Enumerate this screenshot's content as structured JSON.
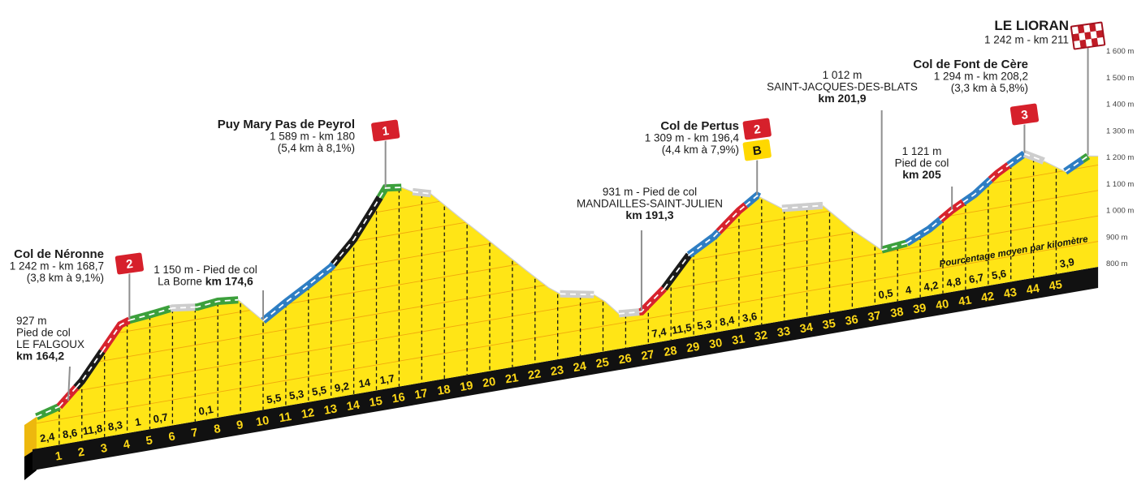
{
  "chart_data": {
    "type": "area",
    "x_unit": "km",
    "y_unit": "m",
    "gradient_axis_label": "Pourcentage moyen par kilomètre",
    "y_axis_labels": [
      "1 600 m",
      "1 500 m",
      "1 400 m",
      "1 300 m",
      "1 200 m",
      "1 100 m",
      "1 000 m",
      "900 m",
      "800 m"
    ],
    "y_axis_values": [
      1600,
      1500,
      1400,
      1300,
      1200,
      1100,
      1000,
      900,
      800
    ],
    "km_ticks": [
      1,
      2,
      3,
      4,
      5,
      6,
      7,
      8,
      9,
      10,
      11,
      12,
      13,
      14,
      15,
      16,
      17,
      18,
      19,
      20,
      21,
      22,
      23,
      24,
      25,
      26,
      27,
      28,
      29,
      30,
      31,
      32,
      33,
      34,
      35,
      36,
      37,
      38,
      39,
      40,
      41,
      42,
      43,
      44,
      45
    ],
    "gradients_pct_by_km": {
      "1": "2,4",
      "2": "8,6",
      "3": "11,8",
      "4": "8,3",
      "5": "1",
      "6": "0,7",
      "8": "0,1",
      "11": "5,5",
      "12": "5,3",
      "13": "5,5",
      "14": "9,2",
      "15": "14",
      "16": "1,7",
      "28": "7,4",
      "29": "11,5",
      "30": "5,3",
      "31": "8,4",
      "32": "3,6",
      "38": "0,5",
      "39": "4",
      "40": "4,2",
      "41": "4,8",
      "42": "6,7",
      "43": "5,6",
      "46": "3,9"
    },
    "profile_points": [
      [
        0,
        925
      ],
      [
        1,
        950
      ],
      [
        2,
        1035
      ],
      [
        3,
        1150
      ],
      [
        3.7,
        1230
      ],
      [
        4.1,
        1242
      ],
      [
        5,
        1250
      ],
      [
        6,
        1261
      ],
      [
        6.5,
        1255
      ],
      [
        7.1,
        1248
      ],
      [
        8,
        1257
      ],
      [
        8.9,
        1249
      ],
      [
        10,
        1150
      ],
      [
        11,
        1207
      ],
      [
        12,
        1260
      ],
      [
        13,
        1315
      ],
      [
        14,
        1408
      ],
      [
        14.8,
        1510
      ],
      [
        15.4,
        1589
      ],
      [
        16.1,
        1581
      ],
      [
        16.6,
        1556
      ],
      [
        17.4,
        1536
      ],
      [
        18.6,
        1430
      ],
      [
        19.6,
        1345
      ],
      [
        20.6,
        1258
      ],
      [
        21.6,
        1172
      ],
      [
        22.6,
        1088
      ],
      [
        23.1,
        1056
      ],
      [
        24.6,
        1030
      ],
      [
        25.1,
        995
      ],
      [
        25.7,
        938
      ],
      [
        26.7,
        931
      ],
      [
        27.7,
        1007
      ],
      [
        28.8,
        1122
      ],
      [
        29.9,
        1178
      ],
      [
        31,
        1262
      ],
      [
        31.8,
        1309
      ],
      [
        32.9,
        1242
      ],
      [
        34.7,
        1226
      ],
      [
        36,
        1110
      ],
      [
        37.3,
        1012
      ],
      [
        38.4,
        1022
      ],
      [
        39.4,
        1062
      ],
      [
        40.4,
        1121
      ],
      [
        41.4,
        1168
      ],
      [
        42.4,
        1235
      ],
      [
        43.6,
        1294
      ],
      [
        44.45,
        1252
      ],
      [
        45.4,
        1196
      ],
      [
        46.4,
        1242
      ],
      [
        46.85,
        1235
      ]
    ],
    "road_segments": [
      {
        "from": 0,
        "to": 1.0,
        "c": "green"
      },
      {
        "from": 1.0,
        "to": 1.75,
        "c": "red"
      },
      {
        "from": 1.75,
        "to": 2.9,
        "c": "black"
      },
      {
        "from": 2.9,
        "to": 4.1,
        "c": "red"
      },
      {
        "from": 4.1,
        "to": 5.9,
        "c": "green"
      },
      {
        "from": 5.9,
        "to": 7.0,
        "c": "gray"
      },
      {
        "from": 7.0,
        "to": 8.9,
        "c": "green"
      },
      {
        "from": 10,
        "to": 13.1,
        "c": "blue"
      },
      {
        "from": 13.1,
        "to": 15.15,
        "c": "black"
      },
      {
        "from": 15.15,
        "to": 16.1,
        "c": "green"
      },
      {
        "from": 16.6,
        "to": 17.4,
        "c": "gray"
      },
      {
        "from": 23.1,
        "to": 24.6,
        "c": "gray"
      },
      {
        "from": 25.7,
        "to": 26.6,
        "c": "gray"
      },
      {
        "from": 26.6,
        "to": 27.7,
        "c": "red"
      },
      {
        "from": 27.7,
        "to": 28.8,
        "c": "black"
      },
      {
        "from": 28.8,
        "to": 30.1,
        "c": "blue"
      },
      {
        "from": 30.1,
        "to": 31.3,
        "c": "red"
      },
      {
        "from": 31.3,
        "to": 31.9,
        "c": "blue"
      },
      {
        "from": 32.9,
        "to": 34.7,
        "c": "gray"
      },
      {
        "from": 37.3,
        "to": 38.4,
        "c": "green"
      },
      {
        "from": 38.4,
        "to": 39.9,
        "c": "blue"
      },
      {
        "from": 39.9,
        "to": 40.9,
        "c": "red"
      },
      {
        "from": 40.9,
        "to": 42.1,
        "c": "blue"
      },
      {
        "from": 42.1,
        "to": 42.9,
        "c": "red"
      },
      {
        "from": 42.9,
        "to": 43.6,
        "c": "blue"
      },
      {
        "from": 43.6,
        "to": 44.45,
        "c": "gray"
      },
      {
        "from": 45.4,
        "to": 46.15,
        "c": "blue"
      },
      {
        "from": 46.15,
        "to": 46.4,
        "c": "green"
      }
    ],
    "landmarks": [
      {
        "id": "le-falgoux",
        "lines": [
          [
            [
              "927 m",
              false
            ]
          ],
          [
            [
              "Pied de col",
              false
            ]
          ],
          [
            [
              "LE FALGOUX",
              false
            ]
          ],
          [
            [
              "km 164,2",
              true
            ]
          ]
        ]
      },
      {
        "id": "col-de-neronne",
        "flag": "2",
        "lines": [
          [
            [
              "Col de Néronne",
              true
            ]
          ],
          [
            [
              "1 242 m - km 168,7",
              false
            ]
          ],
          [
            [
              "(3,8 km à 9,1%)",
              false
            ]
          ]
        ]
      },
      {
        "id": "la-borne",
        "lines": [
          [
            [
              "1 150 m - Pied de col",
              false
            ]
          ],
          [
            [
              "La Borne ",
              false
            ],
            [
              "km 174,6",
              true
            ]
          ]
        ]
      },
      {
        "id": "puy-mary-pas-de-peyrol",
        "flag": "1",
        "lines": [
          [
            [
              "Puy Mary Pas de Peyrol",
              true
            ]
          ],
          [
            [
              "1 589 m - km 180",
              false
            ]
          ],
          [
            [
              "(5,4 km à 8,1%)",
              false
            ]
          ]
        ]
      },
      {
        "id": "mandailles-saint-julien",
        "lines": [
          [
            [
              "931 m - Pied de col",
              false
            ]
          ],
          [
            [
              "MANDAILLES-SAINT-JULIEN",
              false
            ]
          ],
          [
            [
              "km 191,3",
              true
            ]
          ]
        ]
      },
      {
        "id": "col-de-pertus",
        "flag": "2",
        "bonus": "B",
        "lines": [
          [
            [
              "Col de Pertus",
              true
            ]
          ],
          [
            [
              "1 309 m - km 196,4",
              false
            ]
          ],
          [
            [
              "(4,4 km à 7,9%)",
              false
            ]
          ]
        ]
      },
      {
        "id": "saint-jacques-des-blats",
        "lines": [
          [
            [
              "1 012 m",
              false
            ]
          ],
          [
            [
              "SAINT-JACQUES-DES-BLATS",
              false
            ]
          ],
          [
            [
              "km 201,9",
              true
            ]
          ]
        ]
      },
      {
        "id": "pied-de-col-km-205",
        "lines": [
          [
            [
              "1 121 m",
              false
            ]
          ],
          [
            [
              "Pied de col",
              false
            ]
          ],
          [
            [
              "km 205",
              true
            ]
          ]
        ]
      },
      {
        "id": "col-de-font-de-cere",
        "flag": "3",
        "lines": [
          [
            [
              "Col de Font de Cère",
              true
            ]
          ],
          [
            [
              "1 294 m - km 208,2",
              false
            ]
          ],
          [
            [
              "(3,3 km à 5,8%)",
              false
            ]
          ]
        ]
      },
      {
        "id": "le-lioran",
        "flag": "finish",
        "lines": [
          [
            [
              "LE LIORAN",
              true
            ]
          ],
          [
            [
              "1 242 m - km 211",
              false
            ]
          ]
        ]
      }
    ],
    "colors": {
      "surface": "#ffe516",
      "side": "#edb80e",
      "band": "#111111",
      "km_number": "#ffd916",
      "grid": "#f0a30c",
      "edge": "#cfcfcf",
      "road_green": "#3ca03c",
      "road_blue": "#2e7ec3",
      "road_red": "#d7232e",
      "road_black": "#1a1a1a",
      "road_gray": "#cdcdcd",
      "flag_red": "#d6202b",
      "flag_dark_red": "#a3121f",
      "checker_red": "#c01b25",
      "flag_yellow": "#ffd800",
      "pole": "#8f8f8f",
      "text": "#1b1b1b",
      "axis_text": "#3f3f3f"
    }
  }
}
